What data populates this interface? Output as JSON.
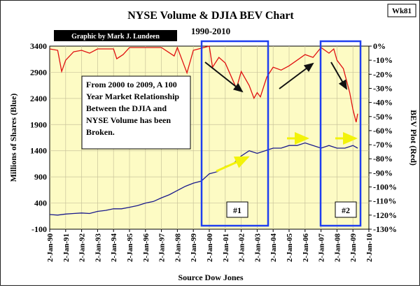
{
  "chart_data": {
    "type": "line",
    "title": "NYSE Volume & DJIA BEV Chart",
    "subtitle": "1990-2010",
    "credit": "Graphic by Mark J. Lundeen",
    "tag": "Wk81",
    "source": "Source Dow Jones",
    "ylabel_left": "Millions of Shares (Blue)",
    "ylabel_right": "BEV Plot (Red)",
    "y_left": {
      "min": -100,
      "max": 3400,
      "ticks": [
        "3400",
        "2900",
        "2400",
        "1900",
        "1400",
        "900",
        "400",
        "-100"
      ]
    },
    "y_right": {
      "min": -130,
      "max": 0,
      "ticks": [
        "0%",
        "-10%",
        "-20%",
        "-30%",
        "-40%",
        "-50%",
        "-60%",
        "-70%",
        "-80%",
        "-90%",
        "-100%",
        "-110%",
        "-120%",
        "-130%"
      ]
    },
    "x_ticks": [
      "2-Jan-90",
      "2-Jan-91",
      "2-Jan-92",
      "2-Jan-93",
      "2-Jan-94",
      "2-Jan-95",
      "2-Jan-96",
      "2-Jan-97",
      "2-Jan-98",
      "2-Jan-99",
      "2-Jan-00",
      "2-Jan-01",
      "2-Jan-02",
      "2-Jan-03",
      "2-Jan-04",
      "2-Jan-05",
      "2-Jan-06",
      "2-Jan-07",
      "2-Jan-08",
      "2-Jan-09",
      "2-Jan-10"
    ],
    "annotation": "From 2000 to 2009, A 100 Year Market Relationship Between the DJIA and NYSE Volume has been Broken.",
    "box_labels": [
      "#1",
      "#2"
    ],
    "series": [
      {
        "name": "NYSE Volume",
        "color": "#1a1a8c",
        "points": [
          [
            1990.0,
            180
          ],
          [
            1990.5,
            170
          ],
          [
            1991.0,
            190
          ],
          [
            1991.5,
            200
          ],
          [
            1992.0,
            210
          ],
          [
            1992.5,
            200
          ],
          [
            1993.0,
            240
          ],
          [
            1993.5,
            260
          ],
          [
            1994.0,
            290
          ],
          [
            1994.5,
            290
          ],
          [
            1995.0,
            320
          ],
          [
            1995.5,
            350
          ],
          [
            1996.0,
            400
          ],
          [
            1996.5,
            430
          ],
          [
            1997.0,
            500
          ],
          [
            1997.5,
            560
          ],
          [
            1998.0,
            640
          ],
          [
            1998.5,
            720
          ],
          [
            1999.0,
            780
          ],
          [
            1999.5,
            820
          ],
          [
            2000.0,
            960
          ],
          [
            2000.5,
            1000
          ],
          [
            2001.0,
            1100
          ],
          [
            2001.5,
            1150
          ],
          [
            2002.0,
            1300
          ],
          [
            2002.5,
            1400
          ],
          [
            2003.0,
            1350
          ],
          [
            2003.5,
            1400
          ],
          [
            2004.0,
            1450
          ],
          [
            2004.5,
            1450
          ],
          [
            2005.0,
            1500
          ],
          [
            2005.5,
            1500
          ],
          [
            2006.0,
            1550
          ],
          [
            2006.5,
            1500
          ],
          [
            2007.0,
            1450
          ],
          [
            2007.5,
            1500
          ],
          [
            2008.0,
            1450
          ],
          [
            2008.5,
            1450
          ],
          [
            2009.0,
            1500
          ],
          [
            2009.3,
            1450
          ]
        ]
      },
      {
        "name": "DJIA BEV",
        "color": "#e01010",
        "points": [
          [
            1990.0,
            -2
          ],
          [
            1990.5,
            -3
          ],
          [
            1990.75,
            -18
          ],
          [
            1991.0,
            -10
          ],
          [
            1991.5,
            -4
          ],
          [
            1992.0,
            -3
          ],
          [
            1992.5,
            -5
          ],
          [
            1993.0,
            -2
          ],
          [
            1994.0,
            -2
          ],
          [
            1994.2,
            -9
          ],
          [
            1994.6,
            -6
          ],
          [
            1995.0,
            -1
          ],
          [
            1996.0,
            -1
          ],
          [
            1997.0,
            -1
          ],
          [
            1997.8,
            -7
          ],
          [
            1998.0,
            -1
          ],
          [
            1998.6,
            -19
          ],
          [
            1999.0,
            -3
          ],
          [
            2000.0,
            0
          ],
          [
            2000.2,
            -15
          ],
          [
            2000.6,
            -8
          ],
          [
            2001.0,
            -12
          ],
          [
            2001.7,
            -30
          ],
          [
            2002.0,
            -18
          ],
          [
            2002.5,
            -28
          ],
          [
            2002.8,
            -37
          ],
          [
            2003.0,
            -33
          ],
          [
            2003.2,
            -36
          ],
          [
            2003.6,
            -22
          ],
          [
            2004.0,
            -15
          ],
          [
            2004.5,
            -17
          ],
          [
            2005.0,
            -14
          ],
          [
            2005.5,
            -10
          ],
          [
            2006.0,
            -6
          ],
          [
            2006.5,
            -8
          ],
          [
            2007.0,
            -1
          ],
          [
            2007.5,
            -5
          ],
          [
            2007.8,
            -2
          ],
          [
            2008.0,
            -10
          ],
          [
            2008.4,
            -16
          ],
          [
            2008.8,
            -33
          ],
          [
            2009.0,
            -45
          ],
          [
            2009.2,
            -54
          ],
          [
            2009.3,
            -48
          ]
        ]
      }
    ]
  }
}
